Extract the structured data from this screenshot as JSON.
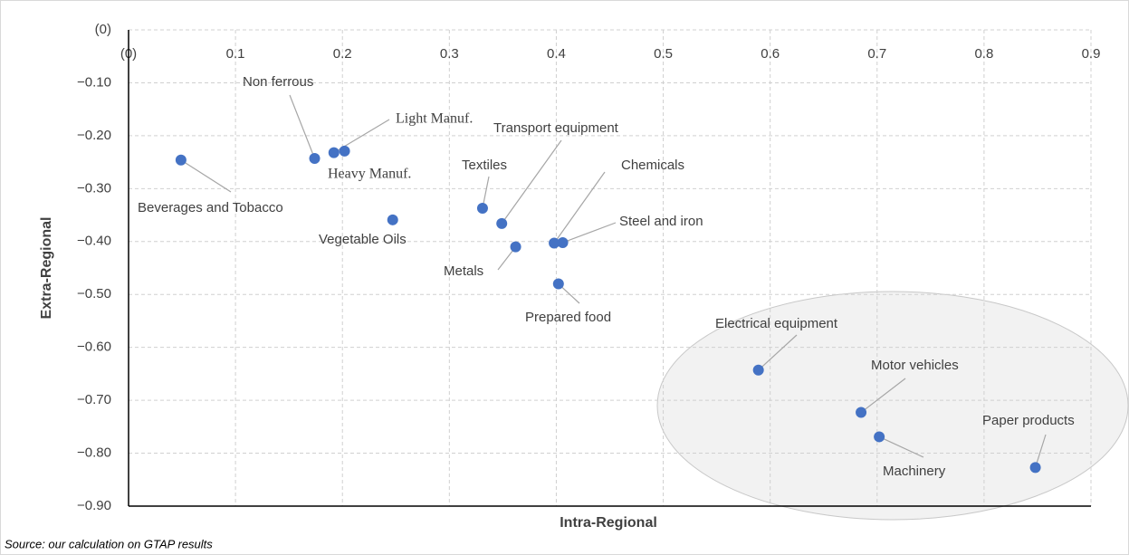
{
  "chart_data": {
    "type": "scatter",
    "x_label": "Intra-Regional",
    "y_label": "Extra-Regional",
    "source": "Source: our calculation on GTAP results",
    "xlim": [
      0,
      0.9
    ],
    "ylim": [
      -0.9,
      0
    ],
    "xticks": [
      {
        "value": 0,
        "label": "(0)"
      },
      0.1,
      0.2,
      0.3,
      0.4,
      0.5,
      0.6,
      0.7,
      0.8,
      0.9
    ],
    "yticks": [
      {
        "value": 0,
        "label": "(0)"
      },
      {
        "value": -0.1,
        "label": "−0.10"
      },
      {
        "value": -0.2,
        "label": "−0.20"
      },
      {
        "value": -0.3,
        "label": "−0.30"
      },
      {
        "value": -0.4,
        "label": "−0.40"
      },
      {
        "value": -0.5,
        "label": "−0.50"
      },
      {
        "value": -0.6,
        "label": "−0.60"
      },
      {
        "value": -0.7,
        "label": "−0.70"
      },
      {
        "value": -0.8,
        "label": "−0.80"
      },
      {
        "value": -0.9,
        "label": "−0.90"
      }
    ],
    "grid": true,
    "series": [
      {
        "color": "#4472c4",
        "labels": [
          "Beverages and Tobacco",
          "Non ferrous",
          "Light Manuf.",
          "Heavy Manuf.",
          "Vegetable Oils",
          "Textiles",
          "Transport equipment",
          "Metals",
          "Chemicals",
          "Steel and iron",
          "Prepared food",
          "Electrical equipment",
          "Motor vehicles",
          "Machinery",
          "Paper products"
        ],
        "x": [
          0.049,
          0.174,
          0.192,
          0.202,
          0.247,
          0.331,
          0.349,
          0.362,
          0.398,
          0.406,
          0.402,
          0.589,
          0.685,
          0.702,
          0.848
        ],
        "y": [
          -0.246,
          -0.243,
          -0.232,
          -0.229,
          -0.359,
          -0.337,
          -0.366,
          -0.41,
          -0.403,
          -0.402,
          -0.48,
          -0.643,
          -0.723,
          -0.769,
          -0.827
        ]
      }
    ]
  }
}
